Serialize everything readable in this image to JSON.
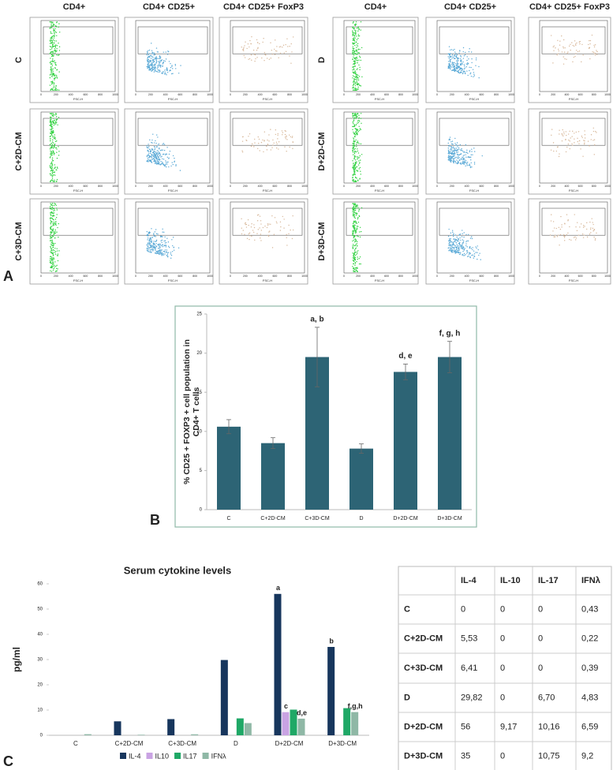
{
  "panels": [
    "A",
    "B",
    "C"
  ],
  "flow": {
    "columns": [
      "CD4+",
      "CD4+ CD25+",
      "CD4+ CD25+ FoxP3",
      "CD4+",
      "CD4+ CD25+",
      "CD4+ CD25+ FoxP3"
    ],
    "rows_left": [
      "C",
      "C+2D-CM",
      "C+3D-CM"
    ],
    "rows_right": [
      "D",
      "D+2D-CM",
      "D+3D-CM"
    ],
    "x_label": "FSC-H",
    "x_ticks": [
      0,
      200,
      400,
      600,
      800,
      1000
    ]
  },
  "chart_data": [
    {
      "type": "bar",
      "ylabel": [
        "% CD25 + FOXP3 + cell population in",
        "CD4+ T cells"
      ],
      "categories": [
        "C",
        "C+2D-CM",
        "C+3D-CM",
        "D",
        "D+2D-CM",
        "D+3D-CM"
      ],
      "values": [
        10.6,
        8.5,
        19.5,
        7.8,
        17.6,
        19.5
      ],
      "errors": [
        0.9,
        0.7,
        3.8,
        0.6,
        1.0,
        2.0
      ],
      "annotations": [
        null,
        null,
        "a, b",
        null,
        "d, e",
        "f, g, h"
      ],
      "color": "#2d6475",
      "ylim": [
        0,
        25
      ],
      "yticks": [
        0,
        5,
        10,
        15,
        20,
        25
      ]
    },
    {
      "type": "grouped_bar",
      "title": "Serum cytokine levels",
      "ylabel": "pg/ml",
      "categories": [
        "C",
        "C+2D-CM",
        "C+3D-CM",
        "D",
        "D+2D-CM",
        "D+3D-CM"
      ],
      "series": [
        {
          "name": "IL-4",
          "color": "#17365d",
          "values": [
            0,
            5.53,
            6.41,
            29.82,
            56,
            35
          ],
          "annotations": [
            null,
            null,
            null,
            null,
            "a",
            "b"
          ]
        },
        {
          "name": "IL10",
          "color": "#c9a3e3",
          "values": [
            0,
            0,
            0,
            0,
            9.17,
            0
          ],
          "annotations": [
            null,
            null,
            null,
            null,
            "c",
            null
          ]
        },
        {
          "name": "IL17",
          "color": "#1fa866",
          "values": [
            0,
            0,
            0,
            6.7,
            10.16,
            10.75
          ],
          "annotations": [
            null,
            null,
            null,
            null,
            null,
            null
          ]
        },
        {
          "name": "IFNλ",
          "color": "#8fb8a6",
          "values": [
            0.43,
            0.22,
            0.39,
            4.83,
            6.59,
            9.2
          ],
          "annotations": [
            null,
            null,
            null,
            null,
            "d,e",
            "f,g,h"
          ]
        }
      ],
      "ylim": [
        0,
        60
      ],
      "yticks": [
        0,
        10,
        20,
        30,
        40,
        50,
        60
      ],
      "legend": "bottom"
    }
  ],
  "table": {
    "header": [
      "IL-4",
      "IL-10",
      "IL-17",
      "IFNλ"
    ],
    "rows": [
      {
        "label": "C",
        "cells": [
          "0",
          "0",
          "0",
          "0,43"
        ]
      },
      {
        "label": "C+2D-CM",
        "cells": [
          "5,53",
          "0",
          "0",
          "0,22"
        ]
      },
      {
        "label": "C+3D-CM",
        "cells": [
          "6,41",
          "0",
          "0",
          "0,39"
        ]
      },
      {
        "label": "D",
        "cells": [
          "29,82",
          "0",
          "6,70",
          "4,83"
        ]
      },
      {
        "label": "D+2D-CM",
        "cells": [
          "56",
          "9,17",
          "10,16",
          "6,59"
        ]
      },
      {
        "label": "D+3D-CM",
        "cells": [
          "35",
          "0",
          "10,75",
          "9,2"
        ]
      }
    ]
  }
}
